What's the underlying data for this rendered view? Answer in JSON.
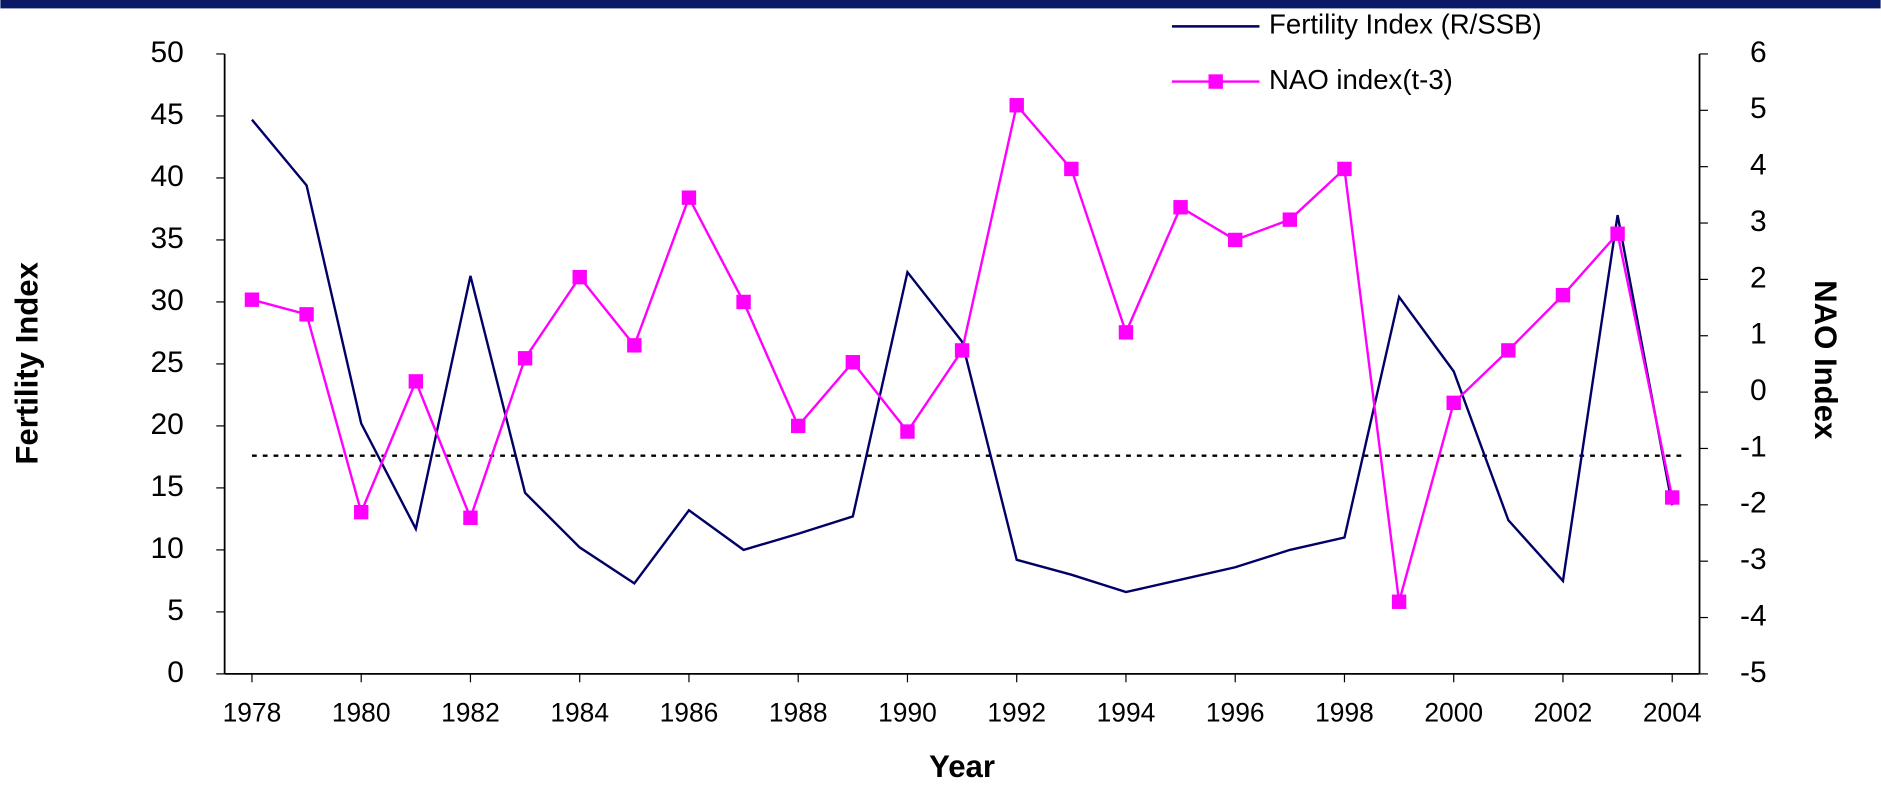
{
  "chart_data": {
    "type": "line",
    "x": [
      1978,
      1979,
      1980,
      1981,
      1982,
      1983,
      1984,
      1985,
      1986,
      1987,
      1988,
      1989,
      1990,
      1991,
      1992,
      1993,
      1994,
      1995,
      1996,
      1997,
      1998,
      1999,
      2000,
      2001,
      2002,
      2003,
      2004
    ],
    "xlabel": "Year",
    "ylabel": "Fertility Index",
    "y2label": "NAO Index",
    "series": [
      {
        "name": "Fertility Index (R/SSB)",
        "color": "#000066",
        "axis": "y",
        "values": [
          44.7,
          39.4,
          20.2,
          11.7,
          32.1,
          14.6,
          10.2,
          7.3,
          13.2,
          10.0,
          11.3,
          12.7,
          32.4,
          26.8,
          9.2,
          8.0,
          6.6,
          7.6,
          8.6,
          10.0,
          11.0,
          30.4,
          24.4,
          12.4,
          7.5,
          37.0,
          13.6
        ]
      },
      {
        "name": "NAO index(t-3)",
        "color": "#ff00ff",
        "axis": "y2",
        "marker": "square",
        "values": [
          1.64,
          1.38,
          -2.13,
          0.19,
          -2.23,
          0.6,
          2.04,
          0.83,
          3.45,
          1.6,
          -0.6,
          0.53,
          -0.7,
          0.74,
          5.09,
          3.96,
          1.06,
          3.28,
          2.7,
          3.06,
          3.96,
          -3.72,
          -0.19,
          0.74,
          1.72,
          2.81,
          -1.87
        ]
      }
    ],
    "xlim": [
      1977.5,
      2004.5
    ],
    "xticks": [
      1978,
      1980,
      1982,
      1984,
      1986,
      1988,
      1990,
      1992,
      1994,
      1996,
      1998,
      2000,
      2002,
      2004
    ],
    "ylim": [
      0,
      50
    ],
    "yticks": [
      0,
      5,
      10,
      15,
      20,
      25,
      30,
      35,
      40,
      45,
      50
    ],
    "y2lim": [
      -5,
      6
    ],
    "y2ticks": [
      -5,
      -4,
      -3,
      -2,
      -1,
      0,
      1,
      2,
      3,
      4,
      5,
      6
    ],
    "reference_line": {
      "value": 17.6,
      "axis": "y",
      "style": "dotted"
    },
    "legend": "top-right"
  }
}
